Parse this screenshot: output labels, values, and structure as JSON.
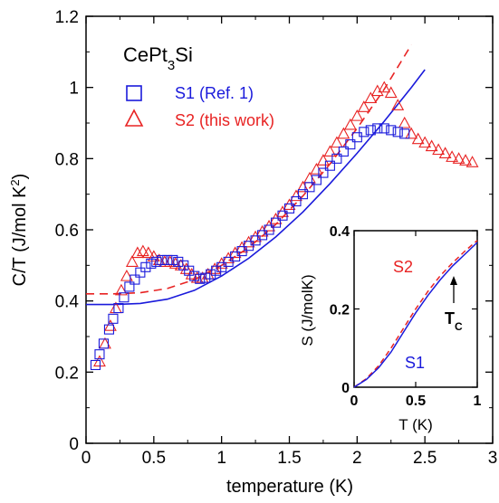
{
  "chart_data": [
    {
      "type": "scatter",
      "title": "CePt₃Si",
      "xlabel": "temperature (K)",
      "ylabel": "C/T (J/mol K²)",
      "xlim": [
        0,
        3
      ],
      "ylim": [
        0,
        1.2
      ],
      "x_ticks": [
        "0",
        "0.5",
        "1",
        "1.5",
        "2",
        "2.5",
        "3"
      ],
      "y_ticks": [
        "0",
        "0.2",
        "0.4",
        "0.6",
        "0.8",
        "1",
        "1.2"
      ],
      "legend_position": "top-left",
      "colors": {
        "S1": "#1a1adb",
        "S2": "#e82323"
      },
      "series": [
        {
          "name": "S1 (Ref. 1)",
          "marker": "square",
          "x": [
            0.07,
            0.1,
            0.13,
            0.17,
            0.2,
            0.24,
            0.28,
            0.32,
            0.36,
            0.4,
            0.44,
            0.48,
            0.52,
            0.56,
            0.6,
            0.64,
            0.68,
            0.72,
            0.76,
            0.8,
            0.84,
            0.88,
            0.92,
            0.96,
            1.0,
            1.05,
            1.1,
            1.15,
            1.2,
            1.25,
            1.3,
            1.35,
            1.4,
            1.45,
            1.5,
            1.55,
            1.6,
            1.65,
            1.7,
            1.75,
            1.8,
            1.85,
            1.9,
            1.95,
            2.0,
            2.05,
            2.1,
            2.15,
            2.2,
            2.25,
            2.3,
            2.35
          ],
          "y": [
            0.22,
            0.25,
            0.28,
            0.32,
            0.35,
            0.38,
            0.41,
            0.44,
            0.46,
            0.48,
            0.495,
            0.505,
            0.51,
            0.515,
            0.515,
            0.515,
            0.51,
            0.5,
            0.485,
            0.47,
            0.462,
            0.465,
            0.475,
            0.485,
            0.495,
            0.51,
            0.525,
            0.54,
            0.555,
            0.57,
            0.585,
            0.6,
            0.62,
            0.64,
            0.66,
            0.68,
            0.7,
            0.72,
            0.74,
            0.76,
            0.78,
            0.8,
            0.82,
            0.84,
            0.86,
            0.875,
            0.88,
            0.885,
            0.885,
            0.88,
            0.875,
            0.87
          ]
        },
        {
          "name": "S2 (this work)",
          "marker": "triangle",
          "x": [
            0.1,
            0.14,
            0.18,
            0.22,
            0.26,
            0.3,
            0.34,
            0.38,
            0.42,
            0.46,
            0.5,
            0.54,
            0.58,
            0.62,
            0.66,
            0.7,
            0.74,
            0.78,
            0.82,
            0.86,
            0.9,
            0.95,
            1.0,
            1.05,
            1.1,
            1.15,
            1.2,
            1.25,
            1.3,
            1.35,
            1.4,
            1.45,
            1.5,
            1.55,
            1.6,
            1.65,
            1.7,
            1.75,
            1.8,
            1.85,
            1.9,
            1.95,
            2.0,
            2.05,
            2.1,
            2.15,
            2.2,
            2.25,
            2.3,
            2.35,
            2.4,
            2.45,
            2.5,
            2.55,
            2.6,
            2.65,
            2.7,
            2.75,
            2.8,
            2.85
          ],
          "y": [
            0.23,
            0.28,
            0.33,
            0.38,
            0.43,
            0.47,
            0.51,
            0.535,
            0.54,
            0.535,
            0.525,
            0.515,
            0.51,
            0.51,
            0.505,
            0.5,
            0.49,
            0.475,
            0.465,
            0.465,
            0.475,
            0.49,
            0.505,
            0.52,
            0.535,
            0.55,
            0.565,
            0.58,
            0.595,
            0.61,
            0.63,
            0.65,
            0.67,
            0.695,
            0.72,
            0.745,
            0.77,
            0.795,
            0.82,
            0.845,
            0.87,
            0.895,
            0.92,
            0.945,
            0.97,
            0.99,
            1.0,
            0.985,
            0.95,
            0.9,
            0.87,
            0.855,
            0.845,
            0.835,
            0.825,
            0.815,
            0.805,
            0.8,
            0.795,
            0.79
          ]
        },
        {
          "name": "S1 fit",
          "style": "solid-line",
          "x": [
            0,
            0.2,
            0.4,
            0.6,
            0.8,
            1.0,
            1.2,
            1.4,
            1.6,
            1.8,
            2.0,
            2.2,
            2.4,
            2.5
          ],
          "y": [
            0.39,
            0.39,
            0.393,
            0.405,
            0.43,
            0.47,
            0.52,
            0.58,
            0.65,
            0.73,
            0.815,
            0.905,
            1.0,
            1.05
          ]
        },
        {
          "name": "S2 fit",
          "style": "dashed-line",
          "x": [
            0,
            0.2,
            0.4,
            0.6,
            0.8,
            1.0,
            1.2,
            1.4,
            1.6,
            1.8,
            2.0,
            2.2,
            2.4
          ],
          "y": [
            0.42,
            0.42,
            0.423,
            0.435,
            0.46,
            0.5,
            0.55,
            0.615,
            0.695,
            0.785,
            0.885,
            0.995,
            1.12
          ]
        }
      ]
    },
    {
      "type": "line",
      "inset": true,
      "xlabel": "T (K)",
      "ylabel": "S (J/molK)",
      "xlim": [
        0,
        1
      ],
      "ylim": [
        0,
        0.4
      ],
      "x_ticks": [
        "0",
        "0.5",
        "1"
      ],
      "y_ticks": [
        "0",
        "0.2",
        "0.4"
      ],
      "series_labels": {
        "S1": "S1",
        "S2": "S2"
      },
      "annotation": "T",
      "annotation_subscript": "C",
      "series": [
        {
          "name": "S1",
          "style": "solid-line",
          "x": [
            0,
            0.1,
            0.2,
            0.3,
            0.4,
            0.5,
            0.6,
            0.7,
            0.8,
            0.9,
            1.0
          ],
          "y": [
            0,
            0.02,
            0.05,
            0.09,
            0.14,
            0.19,
            0.235,
            0.275,
            0.31,
            0.34,
            0.37
          ]
        },
        {
          "name": "S2",
          "style": "dashed-line",
          "x": [
            0,
            0.1,
            0.2,
            0.3,
            0.4,
            0.5,
            0.6,
            0.7,
            0.8,
            0.9,
            1.0
          ],
          "y": [
            0,
            0.022,
            0.055,
            0.1,
            0.15,
            0.2,
            0.245,
            0.285,
            0.318,
            0.348,
            0.375
          ]
        }
      ]
    }
  ]
}
